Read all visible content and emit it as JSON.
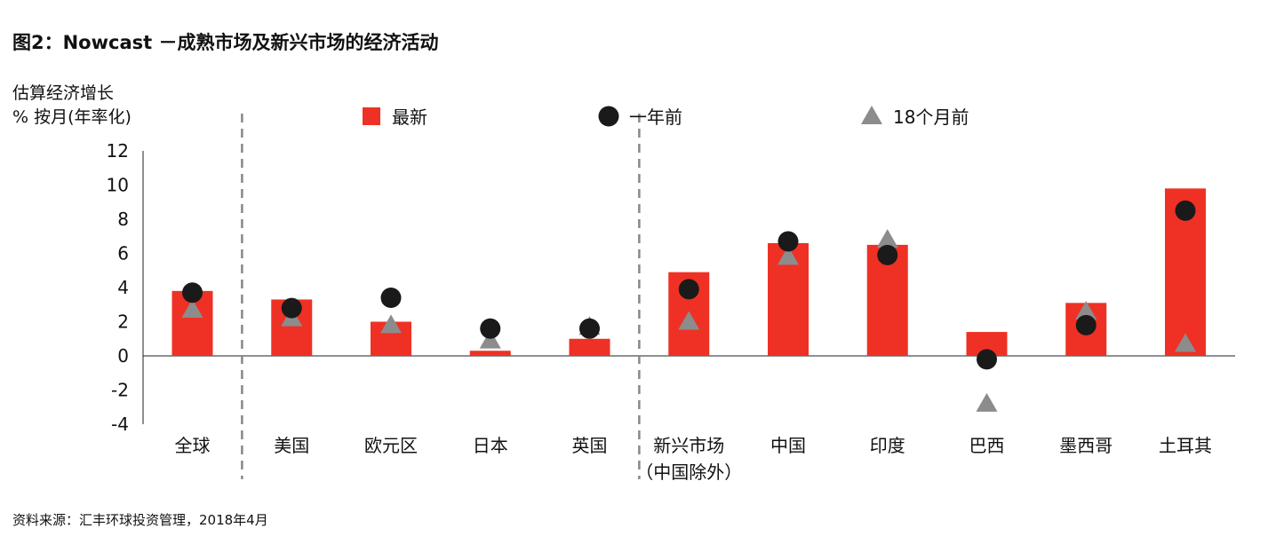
{
  "title": "图2：Nowcast －成熟市场及新兴市场的经济活动",
  "source": "资料来源：汇丰环球投资管理，2018年4月",
  "colors": {
    "latest": "#ee3124",
    "year_ago": "#1a1a1a",
    "m18_ago": "#8c8c8c"
  },
  "chart_data": {
    "type": "bar",
    "ylabel_line1": "估算经济增长",
    "ylabel_line2": "% 按月(年率化)",
    "ylim": [
      -4,
      12
    ],
    "yticks": [
      "12",
      "10",
      "8",
      "6",
      "4",
      "2",
      "0",
      "-2",
      "-4"
    ],
    "legend_position": "top",
    "categories": [
      [
        "全球"
      ],
      [
        "美国"
      ],
      [
        "欧元区"
      ],
      [
        "日本"
      ],
      [
        "英国"
      ],
      [
        "新兴市场",
        "（中国除外）"
      ],
      [
        "中国"
      ],
      [
        "印度"
      ],
      [
        "巴西"
      ],
      [
        "墨西哥"
      ],
      [
        "土耳其"
      ]
    ],
    "group_separators_after": [
      0,
      4
    ],
    "series": [
      {
        "name": "最新",
        "marker": "bar",
        "values": [
          3.8,
          3.3,
          2.0,
          0.3,
          1.0,
          4.9,
          6.6,
          6.5,
          1.4,
          3.1,
          9.8
        ]
      },
      {
        "name": "一年前",
        "marker": "circle",
        "values": [
          3.7,
          2.8,
          3.4,
          1.6,
          1.6,
          3.9,
          6.7,
          5.9,
          -0.2,
          1.8,
          8.5
        ]
      },
      {
        "name": "18个月前",
        "marker": "triangle",
        "values": [
          2.7,
          2.2,
          1.8,
          0.9,
          1.7,
          2.0,
          5.8,
          6.8,
          -2.8,
          2.6,
          0.7
        ]
      }
    ]
  }
}
